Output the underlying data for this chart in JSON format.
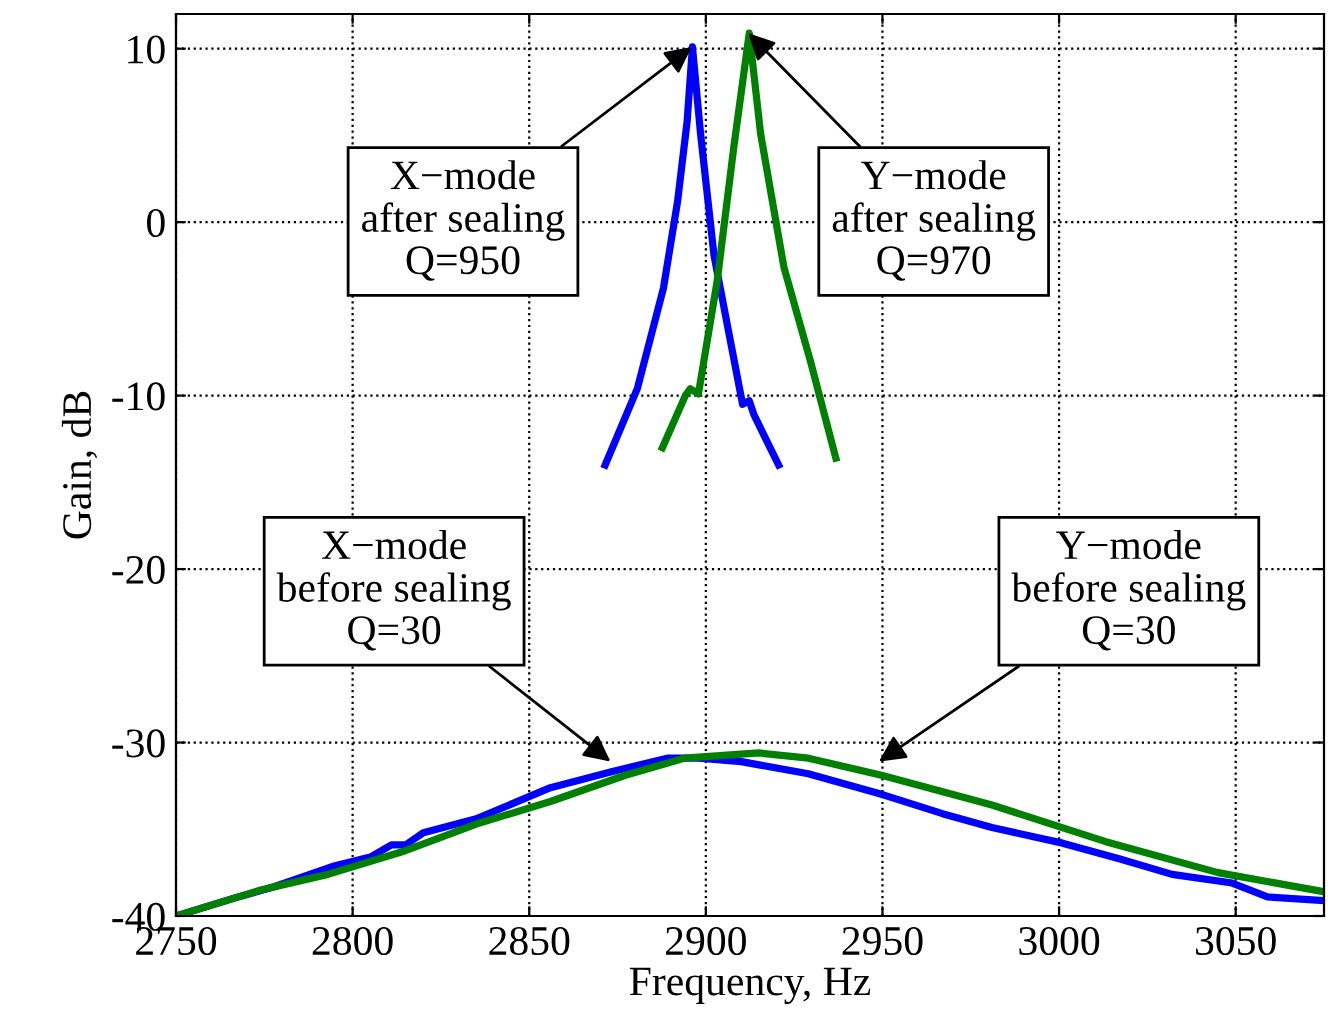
{
  "chart_data": {
    "type": "line",
    "xlabel": "Frequency, Hz",
    "ylabel": "Gain, dB",
    "xlim": [
      2750,
      3075
    ],
    "xticks": [
      2750,
      2800,
      2850,
      2900,
      2950,
      3000,
      3050
    ],
    "ylim": [
      -40,
      12
    ],
    "yticks": [
      -40,
      -30,
      -20,
      -10,
      0,
      10
    ],
    "grid": true,
    "line_style": "solid",
    "marker": "none",
    "series": [
      {
        "color": "#0000ff",
        "x": [
          2750,
          2766,
          2778,
          2795,
          2805,
          2811,
          2815,
          2820,
          2835,
          2856,
          2873,
          2889,
          2898,
          2910,
          2929,
          2950,
          2967,
          2981,
          3001,
          3017,
          3032,
          3049,
          3059,
          3074
        ],
        "values": [
          -40,
          -39.0,
          -38.3,
          -37.1,
          -36.6,
          -35.9,
          -35.9,
          -35.2,
          -34.4,
          -32.6,
          -31.7,
          -30.9,
          -30.9,
          -31.1,
          -31.8,
          -33.0,
          -34.1,
          -34.9,
          -35.8,
          -36.7,
          -37.6,
          -38.1,
          -38.9,
          -39.1
        ]
      },
      {
        "color": "#008000",
        "x": [
          2750,
          2774,
          2793,
          2814,
          2835,
          2856,
          2877,
          2894,
          2915,
          2929,
          2950,
          2981,
          3013,
          3045,
          3075
        ],
        "values": [
          -40,
          -38.5,
          -37.6,
          -36.3,
          -34.7,
          -33.4,
          -31.9,
          -30.9,
          -30.6,
          -30.9,
          -31.9,
          -33.6,
          -35.7,
          -37.5,
          -38.6
        ]
      },
      {
        "color": "#0000ff",
        "x": [
          2871.5,
          2880.6,
          2888,
          2892,
          2894.7,
          2896.2,
          2898.5,
          2902.3,
          2907,
          2910.4,
          2912.3,
          2913.6,
          2920.6
        ],
        "values": [
          -14.0,
          -9.6,
          -3.8,
          1.2,
          5.8,
          10.1,
          5.1,
          -1.9,
          -6.9,
          -10.5,
          -10.3,
          -11.1,
          -14.0
        ]
      },
      {
        "color": "#008000",
        "x": [
          2887.7,
          2894.2,
          2895.6,
          2897.9,
          2903.2,
          2907.9,
          2912.3,
          2915.5,
          2922.1,
          2929.6,
          2936.8
        ],
        "values": [
          -13.0,
          -10.0,
          -9.6,
          -9.9,
          -3.4,
          4.3,
          10.9,
          5.1,
          -2.6,
          -8.0,
          -13.6
        ]
      }
    ],
    "annotations": [
      {
        "text": "X−mode\nafter sealing\nQ=950",
        "x": 2896,
        "y": 10.1
      },
      {
        "text": "Y−mode\nafter sealing\nQ=970",
        "x": 2912,
        "y": 10.9
      },
      {
        "text": "X−mode\nbefore sealing\nQ=30",
        "x": 2873,
        "y": -31.1
      },
      {
        "text": "Y−mode\nbefore sealing\nQ=30",
        "x": 2949,
        "y": -31.1
      }
    ]
  }
}
